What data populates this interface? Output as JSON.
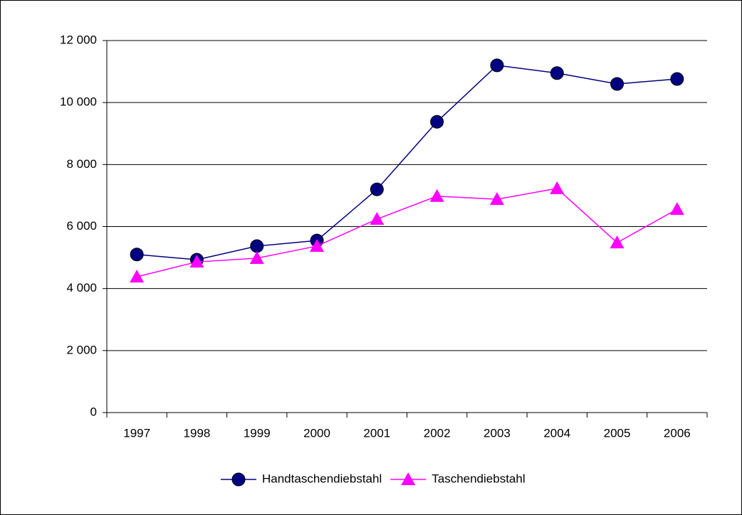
{
  "chart_data": {
    "type": "line",
    "categories": [
      "1997",
      "1998",
      "1999",
      "2000",
      "2001",
      "2002",
      "2003",
      "2004",
      "2005",
      "2006"
    ],
    "series": [
      {
        "name": "Handtaschendiebstahl",
        "color": "#000080",
        "marker": "circle",
        "values": [
          5100,
          4930,
          5370,
          5550,
          7200,
          9380,
          11200,
          10950,
          10600,
          10760
        ]
      },
      {
        "name": "Taschendiebstahl",
        "color": "#ff00ff",
        "marker": "triangle",
        "values": [
          4380,
          4860,
          4980,
          5370,
          6240,
          6980,
          6880,
          7230,
          5480,
          6560
        ]
      }
    ],
    "ylim": [
      0,
      12000
    ],
    "yticks": [
      0,
      {
        "value": 2000,
        "label": "2 000"
      },
      {
        "value": 4000,
        "label": "4 000"
      },
      {
        "value": 6000,
        "label": "6 000"
      },
      {
        "value": 8000,
        "label": "8 000"
      },
      {
        "value": 10000,
        "label": "10 000"
      },
      {
        "value": 12000,
        "label": "12 000"
      }
    ],
    "grid": true,
    "legend": "bottom"
  }
}
